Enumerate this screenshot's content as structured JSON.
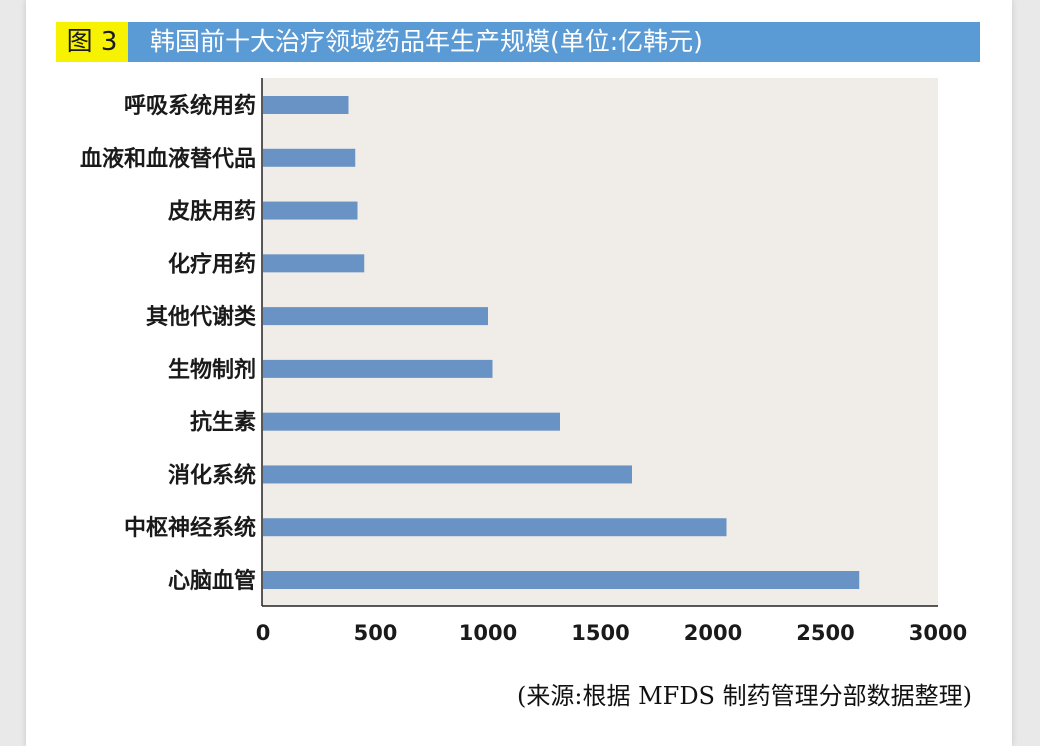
{
  "header": {
    "figure_label": "图 3",
    "title": "韩国前十大治疗领域药品年生产规模(单位:亿韩元)"
  },
  "colors": {
    "bar": "#6a93c5",
    "plot_bg": "#f0ece8",
    "header_bg": "#5b9bd5",
    "label_bg": "#f6f200"
  },
  "chart_data": {
    "type": "bar",
    "orientation": "horizontal",
    "categories": [
      "呼吸系统用药",
      "血液和血液替代品",
      "皮肤用药",
      "化疗用药",
      "其他代谢类",
      "生物制剂",
      "抗生素",
      "消化系统",
      "中枢神经系统",
      "心脑血管"
    ],
    "values": [
      380,
      410,
      420,
      450,
      1000,
      1020,
      1320,
      1640,
      2060,
      2650
    ],
    "xlim": [
      0,
      3000
    ],
    "xticks": [
      "0",
      "500",
      "1000",
      "1500",
      "2000",
      "2500",
      "3000"
    ],
    "grid": false
  },
  "source": "(来源:根据 MFDS 制药管理分部数据整理)"
}
